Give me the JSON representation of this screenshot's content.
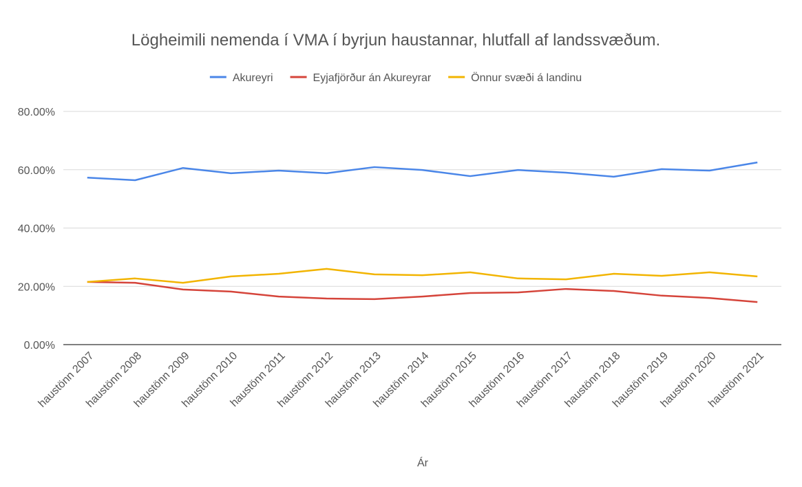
{
  "chart_data": {
    "type": "line",
    "title": "Lögheimili nemenda í VMA í byrjun haustannar, hlutfall af landssvæðum.",
    "x_label": "Ár",
    "categories": [
      "haustönn 2007",
      "haustönn 2008",
      "haustönn 2009",
      "haustönn 2010",
      "haustönn 2011",
      "haustönn 2012",
      "haustönn 2013",
      "haustönn 2014",
      "haustönn 2015",
      "haustönn 2016",
      "haustönn 2017",
      "haustönn 2018",
      "haustönn 2019",
      "haustönn 2020",
      "haustönn 2021"
    ],
    "series": [
      {
        "name": "Akureyri",
        "color": "#4a86e8",
        "values": [
          57.3,
          56.4,
          60.6,
          58.8,
          59.7,
          58.8,
          60.9,
          59.9,
          57.8,
          59.9,
          59.0,
          57.6,
          60.2,
          59.7,
          62.5
        ]
      },
      {
        "name": "Eyjafjörður án Akureyrar",
        "color": "#d5443a",
        "values": [
          21.5,
          21.2,
          18.9,
          18.2,
          16.5,
          15.8,
          15.6,
          16.5,
          17.7,
          17.9,
          19.1,
          18.4,
          16.8,
          16.0,
          14.6
        ]
      },
      {
        "name": "Önnur svæði á landinu",
        "color": "#f2b400",
        "values": [
          21.5,
          22.7,
          21.2,
          23.4,
          24.3,
          26.0,
          24.1,
          23.8,
          24.8,
          22.7,
          22.4,
          24.3,
          23.6,
          24.8,
          23.4
        ]
      }
    ],
    "ylim": [
      0,
      80
    ],
    "yticks": [
      {
        "value": 0,
        "label": "0.00%"
      },
      {
        "value": 20,
        "label": "20.00%"
      },
      {
        "value": 40,
        "label": "40.00%"
      },
      {
        "value": 60,
        "label": "60.00%"
      },
      {
        "value": 80,
        "label": "80.00%"
      }
    ],
    "grid": true,
    "legend": "top"
  }
}
